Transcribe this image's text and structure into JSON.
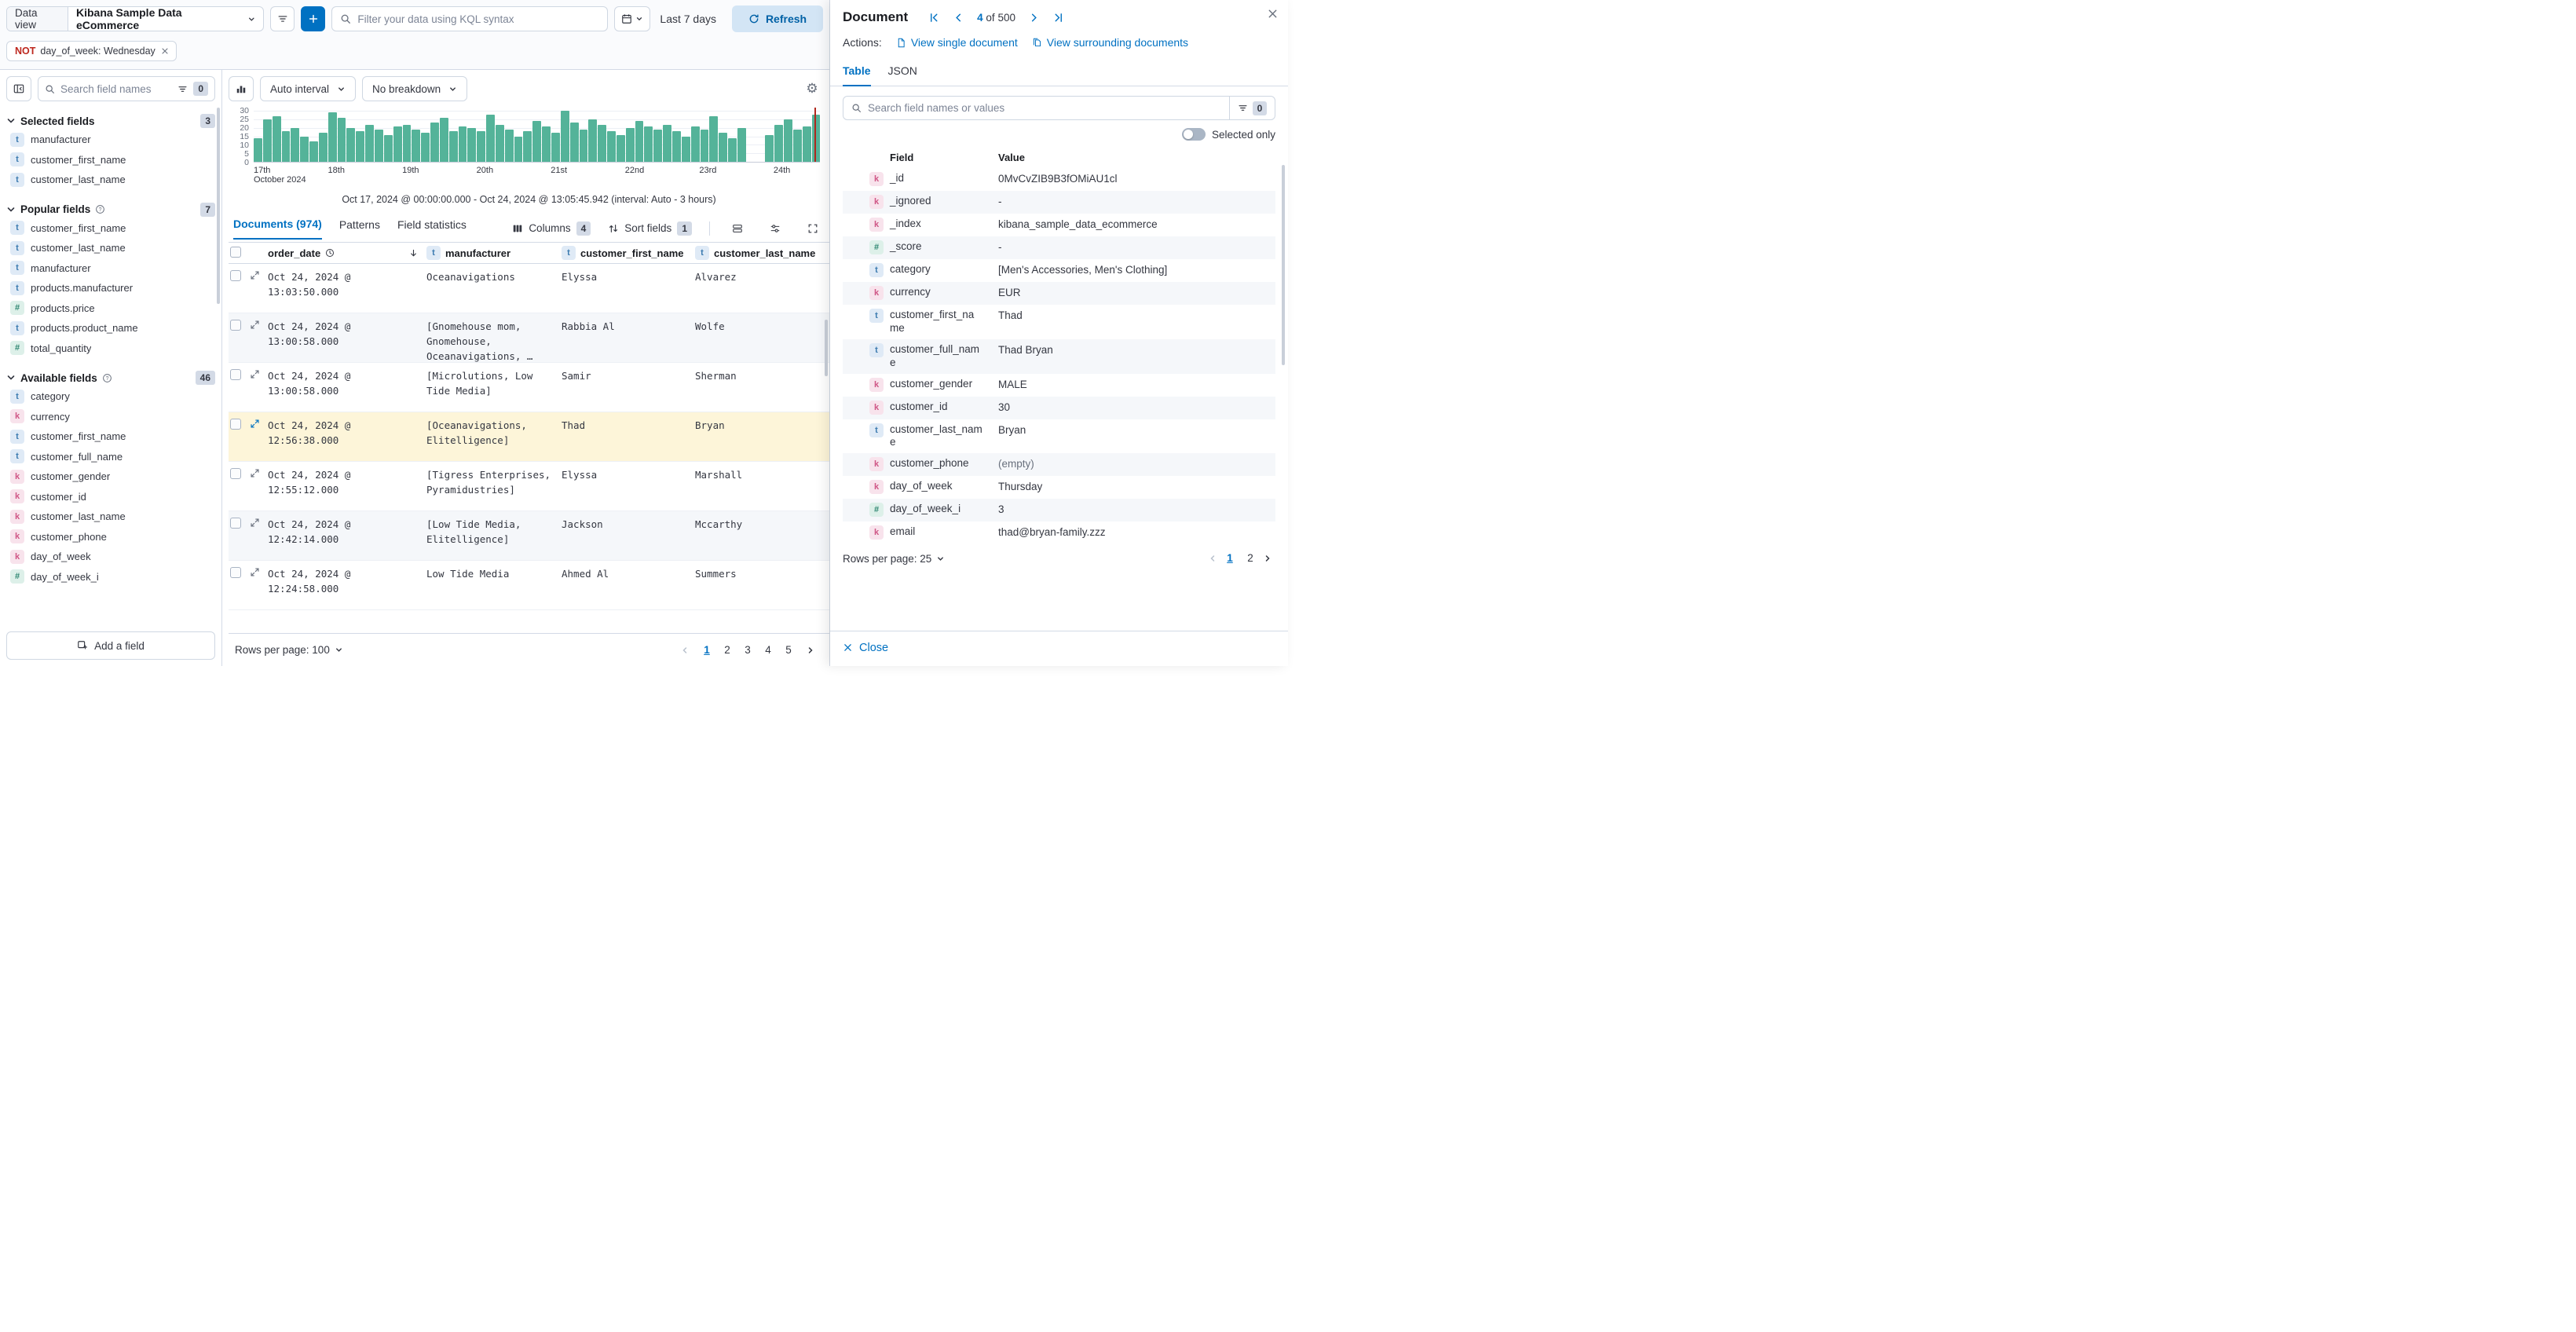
{
  "colors": {
    "accent": "#0071c2",
    "bar_green": "#54b399",
    "highlight_row": "#fdf5d9",
    "negate_red": "#bd271e",
    "stripe": "#f5f7fa"
  },
  "icons": [
    "magnifier",
    "plus",
    "funnel-lines",
    "calendar",
    "chevron-down",
    "refresh-arrow",
    "clock",
    "expand-arrows",
    "sort-down",
    "columns-grid",
    "sort-fields",
    "row-density",
    "sliders",
    "fullscreen",
    "gear",
    "help-circle",
    "collapse-sidebar",
    "document-page",
    "close-x",
    "nav-first",
    "nav-prev",
    "nav-next",
    "nav-last",
    "add-field-square",
    "mini-histogram"
  ],
  "topbar": {
    "data_view_label": "Data view",
    "data_view_value": "Kibana Sample Data eCommerce",
    "kql_placeholder": "Filter your data using KQL syntax",
    "time_range": "Last 7 days",
    "refresh_label": "Refresh"
  },
  "filter_pill": {
    "negate": "NOT",
    "text": "day_of_week: Wednesday"
  },
  "sidebar": {
    "search_placeholder": "Search field names",
    "filter_count": "0",
    "add_field_label": "Add a field",
    "sections": [
      {
        "label": "Selected fields",
        "count": "3",
        "help": false,
        "items": [
          {
            "type": "t",
            "name": "manufacturer"
          },
          {
            "type": "t",
            "name": "customer_first_name"
          },
          {
            "type": "t",
            "name": "customer_last_name"
          }
        ]
      },
      {
        "label": "Popular fields",
        "count": "7",
        "help": true,
        "items": [
          {
            "type": "t",
            "name": "customer_first_name"
          },
          {
            "type": "t",
            "name": "customer_last_name"
          },
          {
            "type": "t",
            "name": "manufacturer"
          },
          {
            "type": "t",
            "name": "products.manufacturer"
          },
          {
            "type": "#",
            "name": "products.price"
          },
          {
            "type": "t",
            "name": "products.product_name"
          },
          {
            "type": "#",
            "name": "total_quantity"
          }
        ]
      },
      {
        "label": "Available fields",
        "count": "46",
        "help": true,
        "items": [
          {
            "type": "t",
            "name": "category"
          },
          {
            "type": "k",
            "name": "currency"
          },
          {
            "type": "t",
            "name": "customer_first_name"
          },
          {
            "type": "t",
            "name": "customer_full_name"
          },
          {
            "type": "k",
            "name": "customer_gender"
          },
          {
            "type": "k",
            "name": "customer_id"
          },
          {
            "type": "k",
            "name": "customer_last_name"
          },
          {
            "type": "k",
            "name": "customer_phone"
          },
          {
            "type": "k",
            "name": "day_of_week"
          },
          {
            "type": "#",
            "name": "day_of_week_i"
          }
        ]
      }
    ]
  },
  "chart": {
    "interval_label": "Auto interval",
    "breakdown_label": "No breakdown",
    "subtitle": "Oct 17, 2024 @ 00:00:00.000 - Oct 24, 2024 @ 13:05:45.942 (interval: Auto - 3 hours)"
  },
  "chart_data": {
    "type": "bar",
    "x_tick_labels": [
      "17th",
      "18th",
      "19th",
      "20th",
      "21st",
      "22nd",
      "23rd",
      "24th"
    ],
    "x_first_tick_sublabel": "October 2024",
    "y_ticks": [
      0,
      5,
      10,
      15,
      20,
      25,
      30
    ],
    "ylim": [
      0,
      32
    ],
    "bar_color": "#54b399",
    "now_line": true,
    "values": [
      14,
      25,
      27,
      18,
      20,
      15,
      12,
      17,
      29,
      26,
      20,
      18,
      22,
      19,
      16,
      21,
      22,
      19,
      17,
      23,
      26,
      18,
      21,
      20,
      18,
      28,
      22,
      19,
      15,
      18,
      24,
      21,
      17,
      30,
      23,
      19,
      25,
      22,
      18,
      16,
      20,
      24,
      21,
      19,
      22,
      18,
      15,
      21,
      19,
      27,
      17,
      14,
      20,
      0,
      0,
      16,
      22,
      25,
      19,
      21,
      28
    ]
  },
  "results": {
    "tabs": [
      {
        "label": "Documents (974)",
        "active": true
      },
      {
        "label": "Patterns",
        "active": false
      },
      {
        "label": "Field statistics",
        "active": false
      }
    ],
    "columns_label": "Columns",
    "columns_count": "4",
    "sort_label": "Sort fields",
    "sort_count": "1",
    "grid": {
      "headers": [
        "order_date",
        "manufacturer",
        "customer_first_name",
        "customer_last_name"
      ],
      "rows": [
        {
          "order_date": "Oct 24, 2024 @ 13:03:50.000",
          "manufacturer": "Oceanavigations",
          "customer_first_name": "Elyssa",
          "customer_last_name": "Alvarez",
          "highlighted": false
        },
        {
          "order_date": "Oct 24, 2024 @ 13:00:58.000",
          "manufacturer": "[Gnomehouse mom, Gnomehouse, Oceanavigations, …",
          "customer_first_name": "Rabbia Al",
          "customer_last_name": "Wolfe",
          "highlighted": false
        },
        {
          "order_date": "Oct 24, 2024 @ 13:00:58.000",
          "manufacturer": "[Microlutions, Low Tide Media]",
          "customer_first_name": "Samir",
          "customer_last_name": "Sherman",
          "highlighted": false
        },
        {
          "order_date": "Oct 24, 2024 @ 12:56:38.000",
          "manufacturer": "[Oceanavigations, Elitelligence]",
          "customer_first_name": "Thad",
          "customer_last_name": "Bryan",
          "highlighted": true
        },
        {
          "order_date": "Oct 24, 2024 @ 12:55:12.000",
          "manufacturer": "[Tigress Enterprises, Pyramidustries]",
          "customer_first_name": "Elyssa",
          "customer_last_name": "Marshall",
          "highlighted": false
        },
        {
          "order_date": "Oct 24, 2024 @ 12:42:14.000",
          "manufacturer": "[Low Tide Media, Elitelligence]",
          "customer_first_name": "Jackson",
          "customer_last_name": "Mccarthy",
          "highlighted": false
        },
        {
          "order_date": "Oct 24, 2024 @ 12:24:58.000",
          "manufacturer": "Low Tide Media",
          "customer_first_name": "Ahmed Al",
          "customer_last_name": "Summers",
          "highlighted": false
        }
      ]
    },
    "rows_per_page_label": "Rows per page: 100",
    "pages": [
      "1",
      "2",
      "3",
      "4",
      "5"
    ],
    "active_page": "1"
  },
  "flyout": {
    "title": "Document",
    "doc_position": "4",
    "of_label": "of",
    "doc_total": "500",
    "actions_label": "Actions:",
    "view_single_label": "View single document",
    "view_surrounding_label": "View surrounding documents",
    "tabs": [
      {
        "label": "Table",
        "active": true
      },
      {
        "label": "JSON",
        "active": false
      }
    ],
    "search_placeholder": "Search field names or values",
    "filter_count": "0",
    "selected_only_label": "Selected only",
    "field_header": "Field",
    "value_header": "Value",
    "rows": [
      {
        "type": "k",
        "field": "_id",
        "value": "0MvCvZIB9B3fOMiAU1cl",
        "empty": false
      },
      {
        "type": "k",
        "field": "_ignored",
        "value": "-",
        "empty": false
      },
      {
        "type": "k",
        "field": "_index",
        "value": "kibana_sample_data_ecommerce",
        "empty": false
      },
      {
        "type": "#",
        "field": "_score",
        "value": "-",
        "empty": false
      },
      {
        "type": "t",
        "field": "category",
        "value": "[Men's Accessories, Men's Clothing]",
        "empty": false
      },
      {
        "type": "k",
        "field": "currency",
        "value": "EUR",
        "empty": false
      },
      {
        "type": "t",
        "field": "customer_first_name",
        "value": "Thad",
        "empty": false
      },
      {
        "type": "t",
        "field": "customer_full_name",
        "value": "Thad Bryan",
        "empty": false
      },
      {
        "type": "k",
        "field": "customer_gender",
        "value": "MALE",
        "empty": false
      },
      {
        "type": "k",
        "field": "customer_id",
        "value": "30",
        "empty": false
      },
      {
        "type": "t",
        "field": "customer_last_name",
        "value": "Bryan",
        "empty": false
      },
      {
        "type": "k",
        "field": "customer_phone",
        "value": "(empty)",
        "empty": true
      },
      {
        "type": "k",
        "field": "day_of_week",
        "value": "Thursday",
        "empty": false
      },
      {
        "type": "#",
        "field": "day_of_week_i",
        "value": "3",
        "empty": false
      },
      {
        "type": "k",
        "field": "email",
        "value": "thad@bryan-family.zzz",
        "empty": false
      }
    ],
    "rows_per_page_label": "Rows per page: 25",
    "pages": [
      "1",
      "2"
    ],
    "active_page": "1",
    "close_label": "Close"
  }
}
